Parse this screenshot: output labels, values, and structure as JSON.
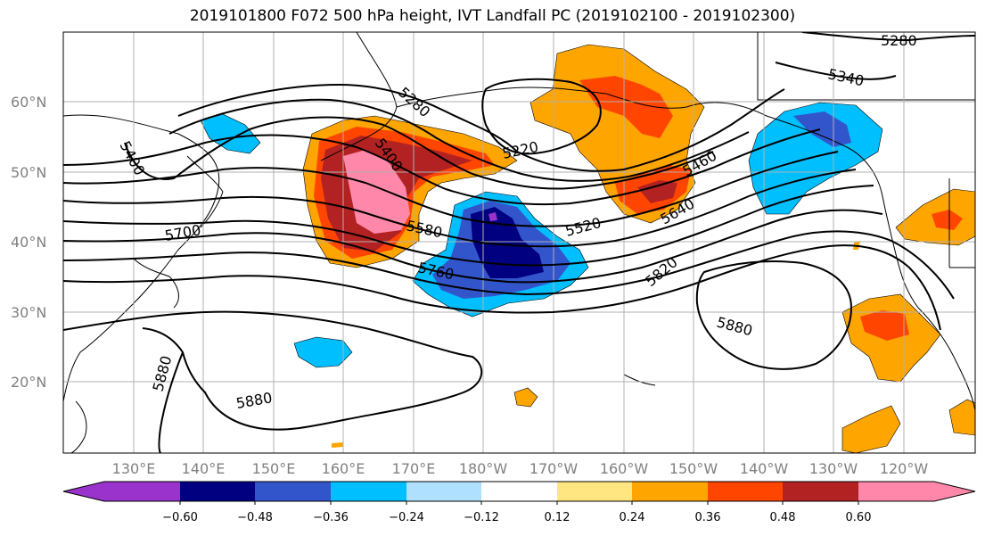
{
  "title": "2019101800 F072 500 hPa height, IVT Landfall PC (2019102100 - 2019102300)",
  "latitude_labels": [
    "60°N",
    "50°N",
    "40°N",
    "30°N",
    "20°N"
  ],
  "longitude_labels": [
    "130°E",
    "140°E",
    "150°E",
    "160°E",
    "170°E",
    "180°W",
    "170°W",
    "160°W",
    "150°W",
    "140°W",
    "130°W",
    "120°W"
  ],
  "contour_labels": [
    "5280",
    "5340",
    "5280",
    "5400",
    "5400",
    "5220",
    "5460",
    "5520",
    "5580",
    "5640",
    "5700",
    "5760",
    "5820",
    "5880",
    "5880",
    "5880"
  ],
  "colorbar": {
    "tick_labels": [
      "−0.60",
      "−0.48",
      "−0.36",
      "−0.24",
      "−0.12",
      "0.12",
      "0.24",
      "0.36",
      "0.48",
      "0.60"
    ],
    "colors": [
      "#9933cc",
      "#000080",
      "#3355cc",
      "#00bfff",
      "#b0e0ff",
      "#ffffff",
      "#ffe680",
      "#ffa500",
      "#ff4500",
      "#b22222",
      "#ff88aa"
    ]
  },
  "field_colors": {
    "light_yellow": "#ffe680",
    "orange": "#ffa500",
    "red_orange": "#ff4500",
    "dark_red": "#b22222",
    "pink": "#ff88aa",
    "light_blue": "#b0e0ff",
    "sky_blue": "#00bfff",
    "blue": "#3355cc",
    "navy": "#000080",
    "purple": "#9933cc"
  }
}
